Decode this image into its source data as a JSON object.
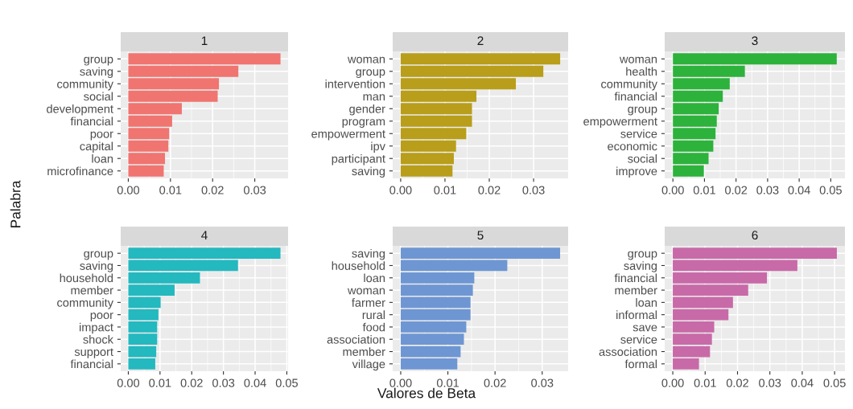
{
  "chart_data": [
    {
      "type": "bar",
      "orientation": "horizontal",
      "title": "1",
      "ylabel": "Palabra",
      "categories": [
        "group",
        "saving",
        "community",
        "social",
        "development",
        "financial",
        "poor",
        "capital",
        "loan",
        "microfinance"
      ],
      "values": [
        0.0361,
        0.0261,
        0.0215,
        0.0212,
        0.0127,
        0.0104,
        0.0097,
        0.0095,
        0.0087,
        0.0084
      ],
      "color": "#f07470",
      "xlim": [
        -0.0018,
        0.0379
      ],
      "xticks": [
        {
          "value": 0,
          "label": "0.00"
        },
        {
          "value": 0.01,
          "label": "0.01"
        },
        {
          "value": 0.02,
          "label": "0.02"
        },
        {
          "value": 0.03,
          "label": "0.03"
        }
      ],
      "grid": true
    },
    {
      "type": "bar",
      "orientation": "horizontal",
      "title": "2",
      "categories": [
        "woman",
        "group",
        "intervention",
        "man",
        "gender",
        "program",
        "empowerment",
        "ipv",
        "participant",
        "saving"
      ],
      "values": [
        0.036,
        0.0322,
        0.026,
        0.0171,
        0.0161,
        0.0161,
        0.0148,
        0.0125,
        0.012,
        0.0117
      ],
      "color": "#b89e1a",
      "xlim": [
        -0.0018,
        0.0378
      ],
      "xticks": [
        {
          "value": 0,
          "label": "0.00"
        },
        {
          "value": 0.01,
          "label": "0.01"
        },
        {
          "value": 0.02,
          "label": "0.02"
        },
        {
          "value": 0.03,
          "label": "0.03"
        }
      ],
      "grid": true
    },
    {
      "type": "bar",
      "orientation": "horizontal",
      "title": "3",
      "categories": [
        "woman",
        "health",
        "community",
        "financial",
        "group",
        "empowerment",
        "service",
        "economic",
        "social",
        "improve"
      ],
      "values": [
        0.0519,
        0.0228,
        0.018,
        0.0158,
        0.0145,
        0.0139,
        0.0135,
        0.0128,
        0.0113,
        0.0098
      ],
      "color": "#2db23c",
      "xlim": [
        -0.0026,
        0.0545
      ],
      "xticks": [
        {
          "value": 0,
          "label": "0.00"
        },
        {
          "value": 0.01,
          "label": "0.01"
        },
        {
          "value": 0.02,
          "label": "0.02"
        },
        {
          "value": 0.03,
          "label": "0.03"
        },
        {
          "value": 0.04,
          "label": "0.04"
        },
        {
          "value": 0.05,
          "label": "0.05"
        }
      ],
      "grid": true
    },
    {
      "type": "bar",
      "orientation": "horizontal",
      "title": "4",
      "categories": [
        "group",
        "saving",
        "household",
        "member",
        "community",
        "poor",
        "impact",
        "shock",
        "support",
        "financial"
      ],
      "values": [
        0.048,
        0.0346,
        0.0226,
        0.0146,
        0.0102,
        0.0095,
        0.0091,
        0.0091,
        0.0088,
        0.0085
      ],
      "color": "#24b8bf",
      "xlim": [
        -0.0024,
        0.0504
      ],
      "xticks": [
        {
          "value": 0,
          "label": "0.00"
        },
        {
          "value": 0.01,
          "label": "0.01"
        },
        {
          "value": 0.02,
          "label": "0.02"
        },
        {
          "value": 0.03,
          "label": "0.03"
        },
        {
          "value": 0.04,
          "label": "0.04"
        },
        {
          "value": 0.05,
          "label": "0.05"
        }
      ],
      "grid": true
    },
    {
      "type": "bar",
      "orientation": "horizontal",
      "title": "5",
      "xlabel": "Valores de Beta",
      "categories": [
        "saving",
        "household",
        "loan",
        "woman",
        "farmer",
        "rural",
        "food",
        "association",
        "member",
        "village"
      ],
      "values": [
        0.0338,
        0.0226,
        0.0156,
        0.0153,
        0.0148,
        0.0148,
        0.0139,
        0.0134,
        0.0127,
        0.012
      ],
      "color": "#6e96d2",
      "xlim": [
        -0.0017,
        0.0355
      ],
      "xticks": [
        {
          "value": 0,
          "label": "0.00"
        },
        {
          "value": 0.01,
          "label": "0.01"
        },
        {
          "value": 0.02,
          "label": "0.02"
        },
        {
          "value": 0.03,
          "label": "0.03"
        }
      ],
      "grid": true
    },
    {
      "type": "bar",
      "orientation": "horizontal",
      "title": "6",
      "categories": [
        "group",
        "saving",
        "financial",
        "member",
        "loan",
        "informal",
        "save",
        "service",
        "association",
        "formal"
      ],
      "values": [
        0.0507,
        0.0385,
        0.0291,
        0.0233,
        0.0186,
        0.0172,
        0.0128,
        0.0121,
        0.0115,
        0.0081
      ],
      "color": "#c86aa8",
      "xlim": [
        -0.0025,
        0.0532
      ],
      "xticks": [
        {
          "value": 0,
          "label": "0.00"
        },
        {
          "value": 0.01,
          "label": "0.01"
        },
        {
          "value": 0.02,
          "label": "0.02"
        },
        {
          "value": 0.03,
          "label": "0.03"
        },
        {
          "value": 0.04,
          "label": "0.04"
        },
        {
          "value": 0.05,
          "label": "0.05"
        }
      ],
      "grid": true
    }
  ]
}
